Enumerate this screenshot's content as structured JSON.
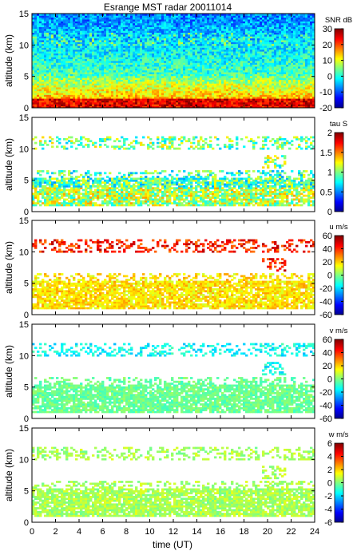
{
  "figure": {
    "title": "Esrange MST radar 20011014",
    "xlabel": "time (UT)",
    "xticks": [
      "0",
      "2",
      "4",
      "6",
      "8",
      "10",
      "12",
      "14",
      "16",
      "18",
      "20",
      "22",
      "24"
    ],
    "xlim": [
      0,
      24
    ]
  },
  "chart_data": [
    {
      "type": "heatmap",
      "title": "Esrange MST radar 20011014",
      "ylabel": "altitude (km)",
      "xlim": [
        0,
        24
      ],
      "ylim": [
        0,
        15
      ],
      "yticks": [
        "0",
        "5",
        "10",
        "15"
      ],
      "colorbar": {
        "label": "SNR dB",
        "range": [
          -20,
          30
        ],
        "ticks": [
          "30",
          "20",
          "10",
          "0",
          "-10",
          "-20"
        ],
        "colormap": "jet"
      },
      "description_values": {
        "surface_snr_dB": 25,
        "upper_snr_dB": -5
      }
    },
    {
      "type": "heatmap",
      "ylabel": "altitude (km)",
      "xlim": [
        0,
        24
      ],
      "ylim": [
        0,
        15
      ],
      "yticks": [
        "0",
        "5",
        "10",
        "15"
      ],
      "colorbar": {
        "label": "tau S",
        "range": [
          0,
          2
        ],
        "ticks": [
          "2",
          "1.5",
          "1",
          "0.5",
          "0"
        ],
        "colormap": "jet"
      },
      "description_values": {
        "lower_layer_km": [
          1,
          6
        ],
        "upper_layer_km": [
          10,
          12
        ],
        "typical_tau_s": 0.9
      }
    },
    {
      "type": "heatmap",
      "ylabel": "altitude (km)",
      "xlim": [
        0,
        24
      ],
      "ylim": [
        0,
        15
      ],
      "yticks": [
        "0",
        "5",
        "10",
        "15"
      ],
      "colorbar": {
        "label": "u m/s",
        "range": [
          -60,
          60
        ],
        "ticks": [
          "60",
          "40",
          "20",
          "0",
          "-20",
          "-40",
          "-60"
        ],
        "colormap": "jet"
      },
      "description_values": {
        "lower_layer_u_ms": 20,
        "upper_layer_u_ms": 45
      }
    },
    {
      "type": "heatmap",
      "ylabel": "altitude (km)",
      "xlim": [
        0,
        24
      ],
      "ylim": [
        0,
        15
      ],
      "yticks": [
        "0",
        "5",
        "10",
        "15"
      ],
      "colorbar": {
        "label": "v m/s",
        "range": [
          -60,
          60
        ],
        "ticks": [
          "60",
          "40",
          "20",
          "0",
          "-20",
          "-40",
          "-60"
        ],
        "colormap": "jet"
      },
      "description_values": {
        "lower_layer_v_ms": -5,
        "upper_layer_v_ms": -15
      }
    },
    {
      "type": "heatmap",
      "ylabel": "altitude (km)",
      "xlim": [
        0,
        24
      ],
      "ylim": [
        0,
        15
      ],
      "yticks": [
        "0",
        "5",
        "10",
        "15"
      ],
      "colorbar": {
        "label": "w m/s",
        "range": [
          -6,
          6
        ],
        "ticks": [
          "6",
          "4",
          "2",
          "0",
          "-2",
          "-4",
          "-6"
        ],
        "colormap": "jet"
      },
      "description_values": {
        "typical_w_ms": 0.5
      }
    }
  ]
}
